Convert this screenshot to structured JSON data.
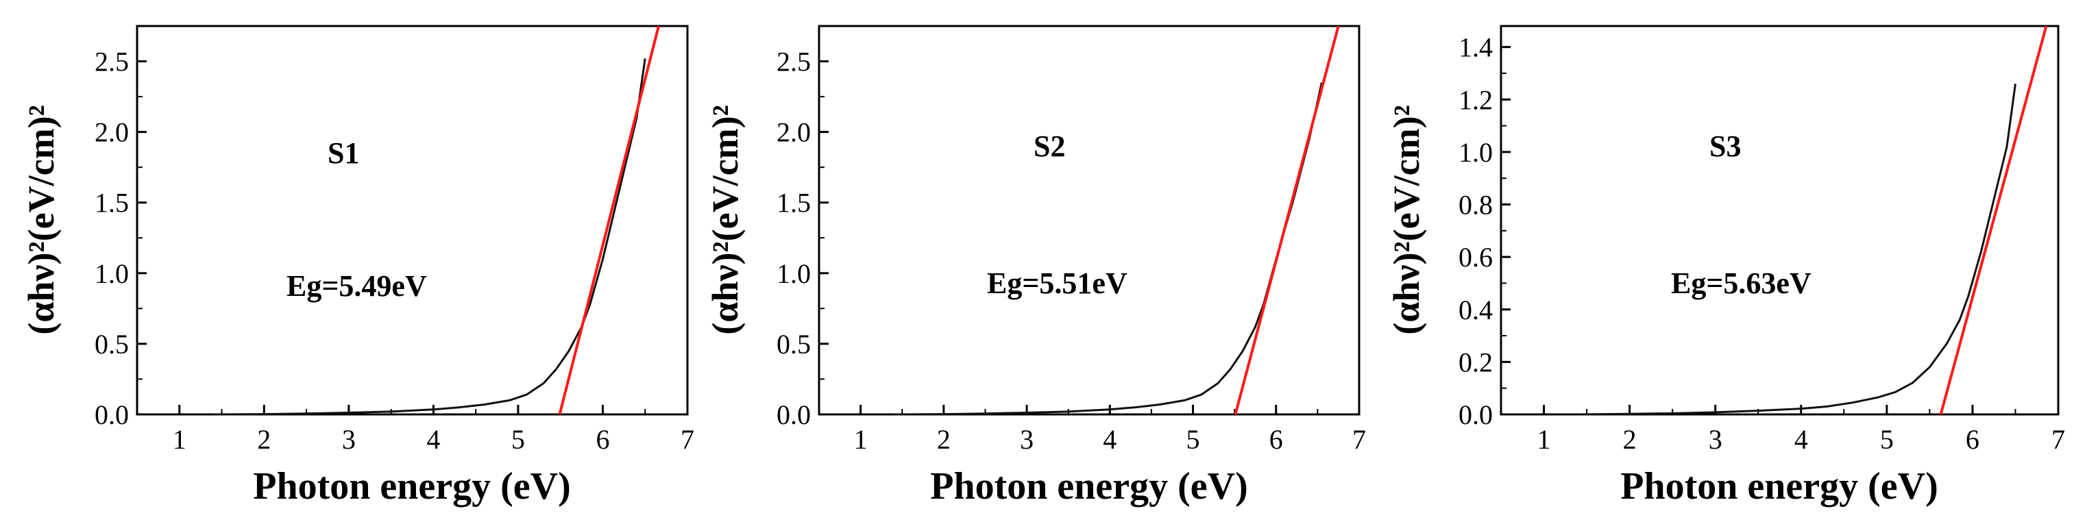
{
  "figure": {
    "panel_count": 3
  },
  "colors": {
    "curve": "#111111",
    "fit_line": "#ff1a1a",
    "axis": "#000000"
  },
  "chart_data": [
    {
      "type": "line",
      "sample_label": "S1",
      "annotation": "Eg=5.49eV",
      "band_gap_eV": 5.49,
      "xlabel": "Photon energy (eV)",
      "ylabel": "(αhν)²(eV/cm)²",
      "xlim": [
        0.5,
        7
      ],
      "ylim": [
        0,
        2.75
      ],
      "x_ticks": [
        1,
        2,
        3,
        4,
        5,
        6,
        7
      ],
      "y_ticks": [
        0.0,
        0.5,
        1.0,
        1.5,
        2.0,
        2.5
      ],
      "y_tick_labels": [
        "0.0",
        "0.5",
        "1.0",
        "1.5",
        "2.0",
        "2.5"
      ],
      "x_tick_labels": [
        "1",
        "2",
        "3",
        "4",
        "5",
        "6",
        "7"
      ],
      "series": [
        {
          "name": "absorption",
          "x": [
            1.4,
            2.0,
            2.5,
            3.0,
            3.5,
            4.0,
            4.3,
            4.6,
            4.9,
            5.1,
            5.3,
            5.45,
            5.6,
            5.75,
            5.85,
            6.0,
            6.2,
            6.4,
            6.5
          ],
          "y": [
            0.0,
            0.002,
            0.006,
            0.012,
            0.02,
            0.035,
            0.05,
            0.07,
            0.1,
            0.14,
            0.22,
            0.32,
            0.45,
            0.62,
            0.78,
            1.1,
            1.6,
            2.1,
            2.52
          ]
        },
        {
          "name": "linear fit",
          "x": [
            5.49,
            6.66
          ],
          "y": [
            0.0,
            2.75
          ]
        }
      ]
    },
    {
      "type": "line",
      "sample_label": "S2",
      "annotation": "Eg=5.51eV",
      "band_gap_eV": 5.51,
      "xlabel": "Photon energy (eV)",
      "ylabel": "(αhν)²(eV/cm)²",
      "xlim": [
        0.5,
        7
      ],
      "ylim": [
        0,
        2.75
      ],
      "x_ticks": [
        1,
        2,
        3,
        4,
        5,
        6,
        7
      ],
      "y_ticks": [
        0.0,
        0.5,
        1.0,
        1.5,
        2.0,
        2.5
      ],
      "y_tick_labels": [
        "0.0",
        "0.5",
        "1.0",
        "1.5",
        "2.0",
        "2.5"
      ],
      "x_tick_labels": [
        "1",
        "2",
        "3",
        "4",
        "5",
        "6",
        "7"
      ],
      "series": [
        {
          "name": "absorption",
          "x": [
            1.4,
            2.0,
            2.5,
            3.0,
            3.5,
            4.0,
            4.3,
            4.6,
            4.9,
            5.1,
            5.3,
            5.45,
            5.6,
            5.75,
            5.85,
            6.0,
            6.2,
            6.4,
            6.55
          ],
          "y": [
            0.0,
            0.002,
            0.006,
            0.012,
            0.02,
            0.035,
            0.05,
            0.07,
            0.1,
            0.14,
            0.22,
            0.32,
            0.45,
            0.62,
            0.78,
            1.1,
            1.5,
            1.95,
            2.35
          ]
        },
        {
          "name": "linear fit",
          "x": [
            5.51,
            6.75
          ],
          "y": [
            0.0,
            2.75
          ]
        }
      ]
    },
    {
      "type": "line",
      "sample_label": "S3",
      "annotation": "Eg=5.63eV",
      "band_gap_eV": 5.63,
      "xlabel": "Photon energy (eV)",
      "ylabel": "(αhν)²(eV/cm)²",
      "xlim": [
        0.5,
        7
      ],
      "ylim": [
        0,
        1.48
      ],
      "x_ticks": [
        1,
        2,
        3,
        4,
        5,
        6,
        7
      ],
      "y_ticks": [
        0.0,
        0.2,
        0.4,
        0.6,
        0.8,
        1.0,
        1.2,
        1.4
      ],
      "y_tick_labels": [
        "0.0",
        "0.2",
        "0.4",
        "0.6",
        "0.8",
        "1.0",
        "1.2",
        "1.4"
      ],
      "x_tick_labels": [
        "1",
        "2",
        "3",
        "4",
        "5",
        "6",
        "7"
      ],
      "series": [
        {
          "name": "absorption",
          "x": [
            1.4,
            2.0,
            2.5,
            3.0,
            3.5,
            4.0,
            4.3,
            4.6,
            4.9,
            5.1,
            5.3,
            5.5,
            5.7,
            5.85,
            5.95,
            6.1,
            6.25,
            6.4,
            6.5
          ],
          "y": [
            0.0,
            0.002,
            0.004,
            0.008,
            0.014,
            0.022,
            0.03,
            0.045,
            0.065,
            0.085,
            0.12,
            0.18,
            0.27,
            0.36,
            0.45,
            0.62,
            0.82,
            1.02,
            1.26
          ]
        },
        {
          "name": "linear fit",
          "x": [
            5.63,
            6.86
          ],
          "y": [
            0.0,
            1.48
          ]
        }
      ]
    }
  ]
}
